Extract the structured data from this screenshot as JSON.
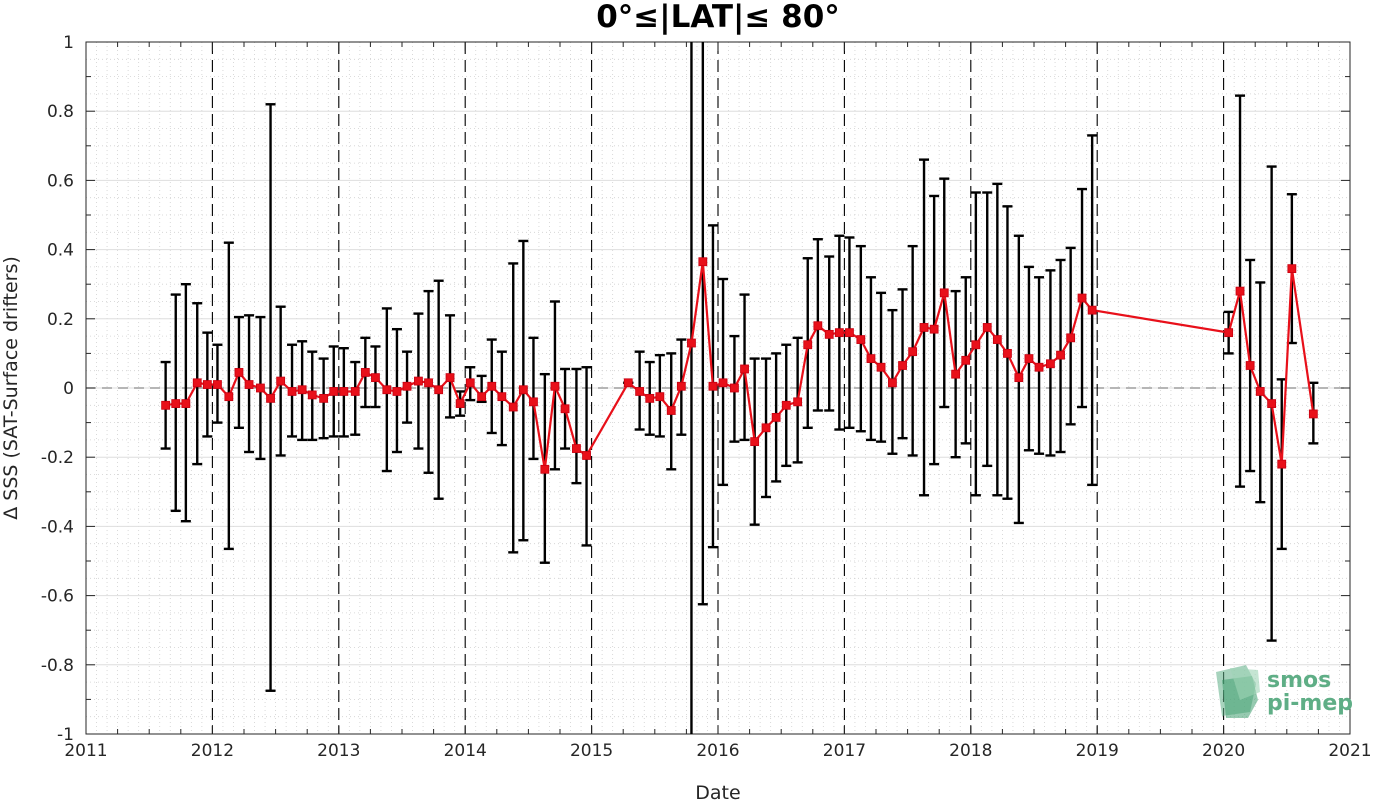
{
  "chart_data": {
    "type": "line",
    "title": "0°≤|LAT|≤ 80°",
    "xlabel": "Date",
    "ylabel": "Δ SSS (SAT-Surface drifters)",
    "xlim": [
      2011,
      2021
    ],
    "ylim": [
      -1,
      1
    ],
    "x_ticks": [
      "2011",
      "2012",
      "2013",
      "2014",
      "2015",
      "2016",
      "2017",
      "2018",
      "2019",
      "2020",
      "2021"
    ],
    "y_ticks": [
      "1",
      "0.8",
      "0.6",
      "0.4",
      "0.2",
      "0",
      "-0.2",
      "-0.4",
      "-0.6",
      "-0.8",
      "-1"
    ],
    "grid": "minor dotted",
    "year_lines": "dashed black at each January",
    "zero_line": "dashed gray",
    "line_color": "#e8101a",
    "errorbar_color": "#000000",
    "series": [
      {
        "x": [
          2011.63,
          2011.71,
          2011.79,
          2011.88,
          2011.96,
          2012.04,
          2012.13,
          2012.21,
          2012.29,
          2012.38,
          2012.46,
          2012.54,
          2012.63,
          2012.71,
          2012.79,
          2012.88,
          2012.96,
          2013.04,
          2013.13,
          2013.21,
          2013.29,
          2013.38,
          2013.46,
          2013.54,
          2013.63,
          2013.71,
          2013.79,
          2013.88,
          2013.96,
          2014.04,
          2014.13,
          2014.21,
          2014.29,
          2014.38,
          2014.46,
          2014.54,
          2014.63,
          2014.71,
          2014.79,
          2014.88,
          2014.96,
          2015.29,
          2015.38,
          2015.46,
          2015.54,
          2015.63,
          2015.71,
          2015.79,
          2015.88,
          2015.96,
          2016.04,
          2016.13,
          2016.21,
          2016.29,
          2016.38,
          2016.46,
          2016.54,
          2016.63,
          2016.71,
          2016.79,
          2016.88,
          2016.96,
          2017.04,
          2017.13,
          2017.21,
          2017.29,
          2017.38,
          2017.46,
          2017.54,
          2017.63,
          2017.71,
          2017.79,
          2017.88,
          2017.96,
          2018.04,
          2018.13,
          2018.21,
          2018.29,
          2018.38,
          2018.46,
          2018.54,
          2018.63,
          2018.71,
          2018.79,
          2018.88,
          2018.96,
          2020.04,
          2020.13,
          2020.21,
          2020.29,
          2020.38,
          2020.46,
          2020.54,
          2020.71
        ],
        "y": [
          -0.05,
          -0.045,
          -0.045,
          0.015,
          0.01,
          0.01,
          -0.025,
          0.045,
          0.01,
          0,
          -0.03,
          0.02,
          -0.01,
          -0.005,
          -0.02,
          -0.03,
          -0.01,
          -0.01,
          -0.01,
          0.045,
          0.03,
          -0.005,
          -0.01,
          0.005,
          0.02,
          0.015,
          -0.005,
          0.03,
          -0.045,
          0.015,
          -0.025,
          0.005,
          -0.025,
          -0.055,
          -0.005,
          -0.04,
          -0.235,
          0.005,
          -0.06,
          -0.175,
          -0.195,
          0.015,
          -0.01,
          -0.03,
          -0.025,
          -0.065,
          0.005,
          0.13,
          0.365,
          0.005,
          0.015,
          0,
          0.055,
          -0.155,
          -0.115,
          -0.085,
          -0.05,
          -0.04,
          0.125,
          0.18,
          0.155,
          0.16,
          0.16,
          0.14,
          0.085,
          0.06,
          0.015,
          0.065,
          0.105,
          0.175,
          0.17,
          0.275,
          0.04,
          0.08,
          0.125,
          0.175,
          0.14,
          0.1,
          0.03,
          0.085,
          0.06,
          0.07,
          0.095,
          0.145,
          0.26,
          0.225,
          0.16,
          0.28,
          0.065,
          -0.01,
          -0.045,
          -0.22,
          0.345,
          -0.075
        ],
        "err_lo": [
          -0.175,
          -0.355,
          -0.385,
          -0.22,
          -0.14,
          -0.1,
          -0.465,
          -0.115,
          -0.185,
          -0.205,
          -0.875,
          -0.195,
          -0.14,
          -0.15,
          -0.15,
          -0.145,
          -0.14,
          -0.14,
          -0.135,
          -0.055,
          -0.055,
          -0.24,
          -0.185,
          -0.1,
          -0.175,
          -0.245,
          -0.32,
          -0.085,
          -0.08,
          -0.035,
          -0.04,
          -0.13,
          -0.165,
          -0.475,
          -0.44,
          -0.205,
          -0.505,
          -0.235,
          -0.175,
          -0.275,
          -0.455,
          0.015,
          -0.12,
          -0.135,
          -0.14,
          -0.235,
          -0.135,
          -1,
          -0.625,
          -0.46,
          -0.28,
          -0.155,
          -0.15,
          -0.395,
          -0.315,
          -0.27,
          -0.225,
          -0.215,
          -0.115,
          -0.065,
          -0.065,
          -0.12,
          -0.115,
          -0.125,
          -0.15,
          -0.155,
          -0.19,
          -0.145,
          -0.195,
          -0.31,
          -0.22,
          -0.055,
          -0.2,
          -0.16,
          -0.31,
          -0.225,
          -0.31,
          -0.32,
          -0.39,
          -0.18,
          -0.19,
          -0.195,
          -0.185,
          -0.105,
          -0.055,
          -0.28,
          0.1,
          -0.285,
          -0.24,
          -0.33,
          -0.73,
          -0.465,
          0.13,
          -0.16
        ],
        "err_hi": [
          0.075,
          0.27,
          0.3,
          0.245,
          0.16,
          0.125,
          0.42,
          0.205,
          0.21,
          0.205,
          0.82,
          0.235,
          0.125,
          0.135,
          0.105,
          0.085,
          0.12,
          0.115,
          0.075,
          0.145,
          0.12,
          0.23,
          0.17,
          0.105,
          0.215,
          0.28,
          0.31,
          0.21,
          -0.01,
          0.06,
          0.035,
          0.14,
          0.105,
          0.36,
          0.425,
          0.145,
          0.04,
          0.25,
          0.055,
          0.055,
          0.06,
          0.015,
          0.105,
          0.075,
          0.095,
          0.1,
          0.14,
          1,
          1,
          0.47,
          0.315,
          0.15,
          0.27,
          0.085,
          0.085,
          0.1,
          0.125,
          0.145,
          0.375,
          0.43,
          0.38,
          0.44,
          0.435,
          0.41,
          0.32,
          0.275,
          0.225,
          0.285,
          0.41,
          0.66,
          0.555,
          0.605,
          0.28,
          0.32,
          0.565,
          0.565,
          0.59,
          0.525,
          0.44,
          0.35,
          0.32,
          0.34,
          0.37,
          0.405,
          0.575,
          0.73,
          0.22,
          0.845,
          0.37,
          0.305,
          0.64,
          0.025,
          0.56,
          0.015
        ]
      }
    ]
  },
  "logo": {
    "line1": "smos",
    "line2": "pi-mep",
    "color": "#5fae86"
  }
}
